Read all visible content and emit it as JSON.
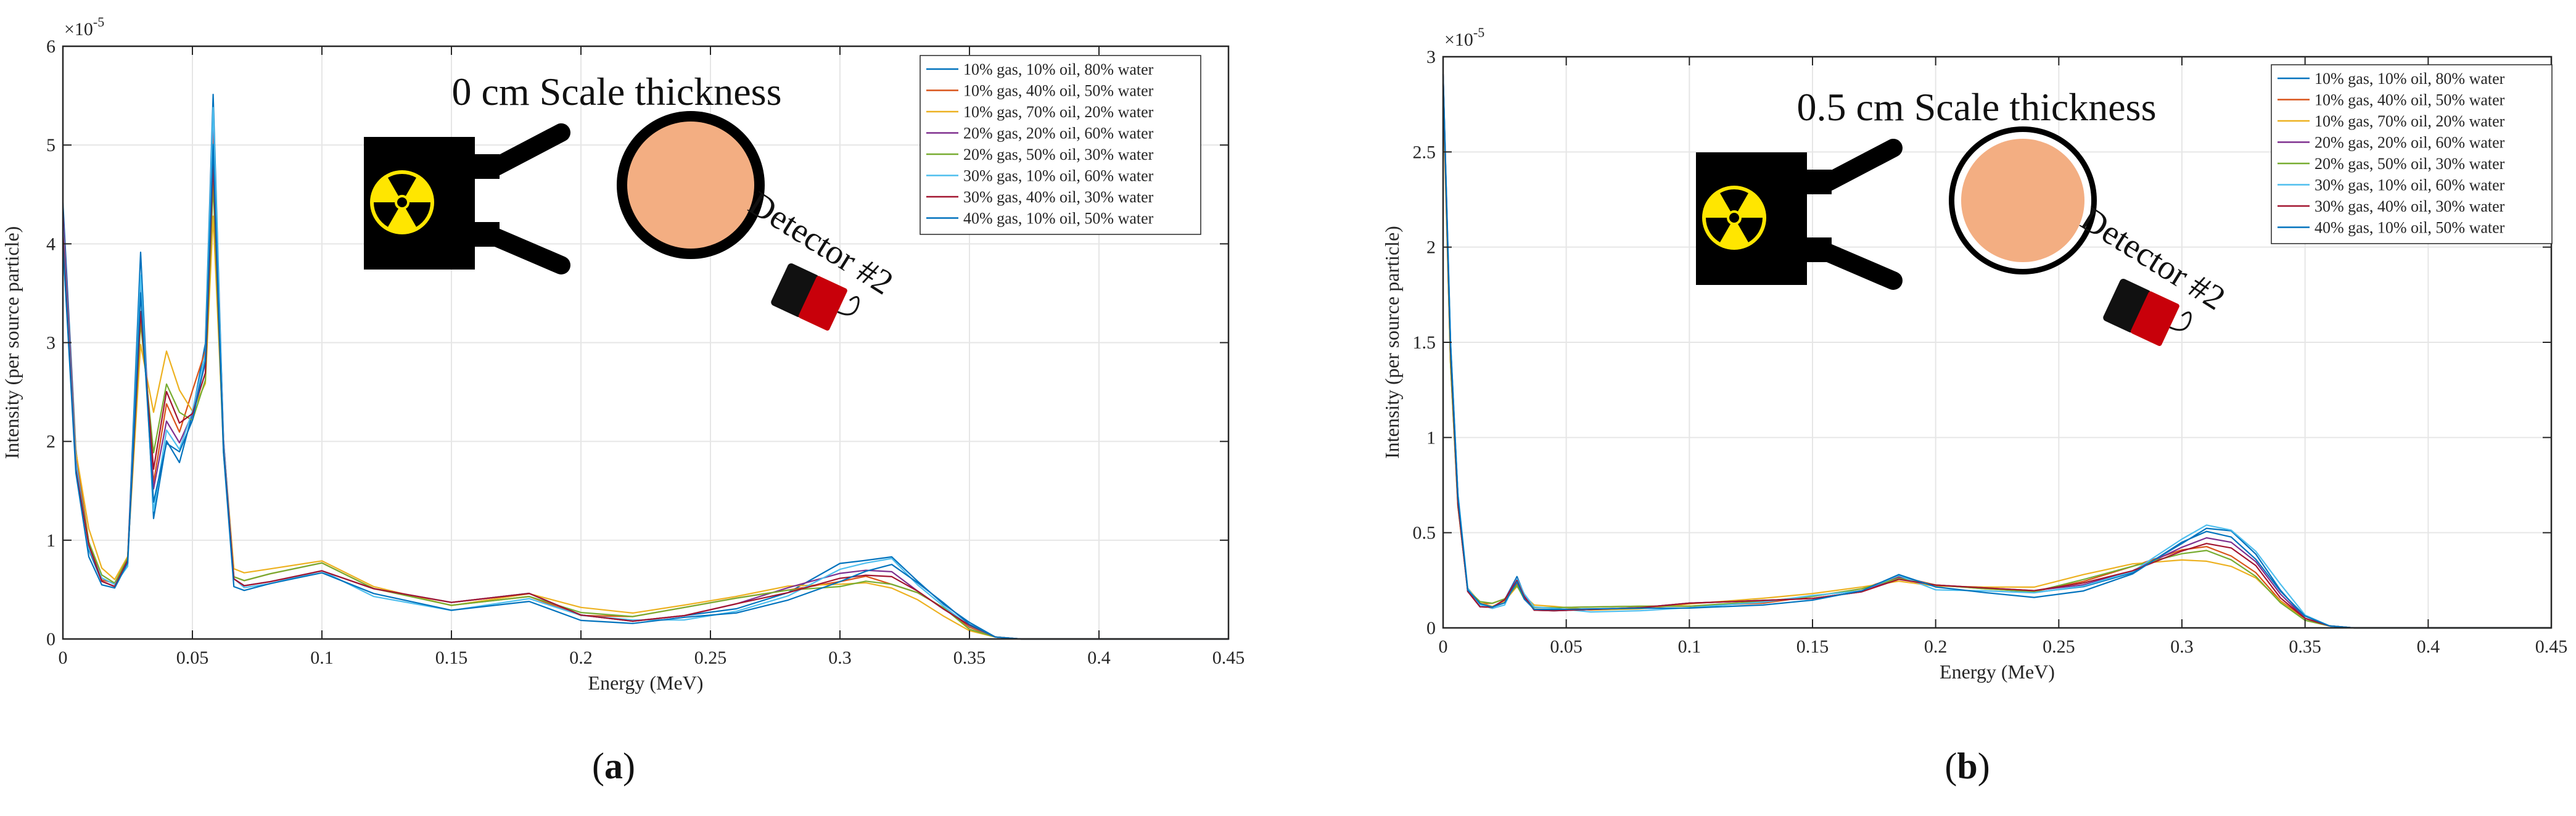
{
  "series_names": [
    "10% gas, 10% oil, 80% water",
    "10% gas, 40% oil, 50% water",
    "10% gas, 70% oil, 20% water",
    "20% gas, 20% oil, 60% water",
    "20% gas, 50% oil, 30% water",
    "30% gas, 10% oil, 60% water",
    "30% gas, 40% oil, 30% water",
    "40% gas, 10% oil, 50% water"
  ],
  "series_colors": [
    "#0072BD",
    "#D95319",
    "#EDB120",
    "#7E2F8E",
    "#77AC30",
    "#4DBEEE",
    "#A2142F",
    "#0072BD"
  ],
  "chart_data": [
    {
      "type": "line",
      "panel_label": "a",
      "title": "0 cm Scale thickness",
      "detector_label": "Detector #2",
      "xlabel": "Energy (MeV)",
      "ylabel": "Intensity (per source particle)",
      "y_exponent_label": "×10",
      "y_exponent": "-5",
      "xlim": [
        0,
        0.45
      ],
      "ylim": [
        0,
        6
      ],
      "xticks": [
        "0",
        "0.05",
        "0.1",
        "0.15",
        "0.2",
        "0.25",
        "0.3",
        "0.35",
        "0.4",
        "0.45"
      ],
      "yticks": [
        "0",
        "1",
        "2",
        "3",
        "4",
        "5",
        "6"
      ],
      "grid": true,
      "legend_position": "top-right",
      "x": [
        0,
        0.005,
        0.01,
        0.015,
        0.02,
        0.025,
        0.03,
        0.035,
        0.04,
        0.045,
        0.05,
        0.055,
        0.058,
        0.062,
        0.066,
        0.07,
        0.08,
        0.1,
        0.12,
        0.15,
        0.18,
        0.2,
        0.22,
        0.24,
        0.26,
        0.28,
        0.3,
        0.31,
        0.32,
        0.33,
        0.34,
        0.35,
        0.36,
        0.37,
        0.45
      ],
      "series": [
        {
          "name": "10% gas, 10% oil, 80% water",
          "values": [
            4.4,
            1.9,
            0.9,
            0.6,
            0.55,
            0.8,
            3.9,
            1.2,
            2.0,
            1.8,
            2.3,
            3.0,
            5.5,
            2.0,
            0.6,
            0.55,
            0.6,
            0.7,
            0.5,
            0.35,
            0.45,
            0.25,
            0.2,
            0.25,
            0.3,
            0.45,
            0.75,
            0.8,
            0.85,
            0.6,
            0.35,
            0.15,
            0.02,
            0,
            0
          ]
        },
        {
          "name": "10% gas, 40% oil, 50% water",
          "values": [
            4.3,
            1.9,
            1.0,
            0.6,
            0.55,
            0.8,
            3.5,
            1.6,
            2.4,
            2.1,
            2.5,
            2.9,
            5.1,
            2.0,
            0.65,
            0.6,
            0.65,
            0.75,
            0.5,
            0.35,
            0.45,
            0.25,
            0.22,
            0.3,
            0.4,
            0.5,
            0.6,
            0.65,
            0.55,
            0.45,
            0.3,
            0.12,
            0.02,
            0,
            0
          ]
        },
        {
          "name": "10% gas, 70% oil, 20% water",
          "values": [
            4.1,
            1.9,
            1.1,
            0.7,
            0.6,
            0.85,
            3.0,
            2.3,
            2.9,
            2.5,
            2.3,
            2.6,
            4.3,
            2.0,
            0.7,
            0.65,
            0.7,
            0.8,
            0.55,
            0.35,
            0.45,
            0.3,
            0.25,
            0.35,
            0.45,
            0.55,
            0.55,
            0.55,
            0.5,
            0.4,
            0.25,
            0.1,
            0.02,
            0,
            0
          ]
        },
        {
          "name": "20% gas, 20% oil, 60% water",
          "values": [
            4.3,
            1.8,
            0.95,
            0.6,
            0.55,
            0.8,
            3.6,
            1.5,
            2.2,
            2.0,
            2.3,
            2.8,
            5.3,
            2.0,
            0.6,
            0.55,
            0.6,
            0.7,
            0.5,
            0.35,
            0.45,
            0.25,
            0.2,
            0.25,
            0.35,
            0.5,
            0.65,
            0.7,
            0.7,
            0.5,
            0.3,
            0.12,
            0.02,
            0,
            0
          ]
        },
        {
          "name": "20% gas, 50% oil, 30% water",
          "values": [
            4.0,
            1.8,
            1.0,
            0.65,
            0.55,
            0.8,
            3.2,
            1.9,
            2.6,
            2.3,
            2.2,
            2.6,
            4.6,
            1.9,
            0.65,
            0.6,
            0.65,
            0.75,
            0.5,
            0.35,
            0.45,
            0.28,
            0.22,
            0.3,
            0.4,
            0.5,
            0.55,
            0.6,
            0.55,
            0.45,
            0.3,
            0.1,
            0.02,
            0,
            0
          ]
        },
        {
          "name": "30% gas, 10% oil, 60% water",
          "values": [
            4.2,
            1.8,
            0.9,
            0.6,
            0.55,
            0.75,
            3.7,
            1.3,
            2.1,
            1.9,
            2.3,
            2.9,
            5.4,
            2.0,
            0.6,
            0.5,
            0.55,
            0.7,
            0.45,
            0.3,
            0.4,
            0.22,
            0.18,
            0.2,
            0.3,
            0.45,
            0.7,
            0.75,
            0.8,
            0.55,
            0.35,
            0.15,
            0.02,
            0,
            0
          ]
        },
        {
          "name": "30% gas, 40% oil, 30% water",
          "values": [
            4.1,
            1.7,
            0.95,
            0.6,
            0.55,
            0.8,
            3.3,
            1.7,
            2.5,
            2.2,
            2.3,
            2.7,
            4.8,
            1.9,
            0.6,
            0.55,
            0.6,
            0.7,
            0.5,
            0.35,
            0.45,
            0.25,
            0.2,
            0.25,
            0.35,
            0.45,
            0.6,
            0.65,
            0.65,
            0.5,
            0.3,
            0.12,
            0.02,
            0,
            0
          ]
        },
        {
          "name": "40% gas, 10% oil, 50% water",
          "values": [
            4.0,
            1.7,
            0.85,
            0.55,
            0.5,
            0.75,
            3.5,
            1.4,
            2.0,
            1.9,
            2.2,
            2.8,
            5.0,
            1.9,
            0.55,
            0.5,
            0.55,
            0.65,
            0.45,
            0.3,
            0.4,
            0.2,
            0.15,
            0.2,
            0.25,
            0.4,
            0.6,
            0.7,
            0.75,
            0.55,
            0.35,
            0.15,
            0.02,
            0,
            0
          ]
        }
      ]
    },
    {
      "type": "line",
      "panel_label": "b",
      "title": "0.5 cm Scale thickness",
      "detector_label": "Detector #2",
      "xlabel": "Energy (MeV)",
      "ylabel": "Intensity (per source particle)",
      "y_exponent_label": "×10",
      "y_exponent": "-5",
      "xlim": [
        0,
        0.45
      ],
      "ylim": [
        0,
        3
      ],
      "xticks": [
        "0",
        "0.05",
        "0.1",
        "0.15",
        "0.2",
        "0.25",
        "0.3",
        "0.35",
        "0.4",
        "0.45"
      ],
      "yticks": [
        "0",
        "0.5",
        "1",
        "1.5",
        "2",
        "2.5",
        "3"
      ],
      "grid": true,
      "legend_position": "top-right",
      "x": [
        0,
        0.003,
        0.006,
        0.01,
        0.015,
        0.02,
        0.025,
        0.03,
        0.033,
        0.037,
        0.045,
        0.06,
        0.08,
        0.1,
        0.13,
        0.15,
        0.17,
        0.185,
        0.2,
        0.22,
        0.24,
        0.26,
        0.28,
        0.3,
        0.31,
        0.32,
        0.33,
        0.34,
        0.35,
        0.36,
        0.37,
        0.45
      ],
      "series": [
        {
          "name": "10% gas, 10% oil, 80% water",
          "values": [
            2.9,
            1.5,
            0.7,
            0.2,
            0.12,
            0.11,
            0.14,
            0.26,
            0.17,
            0.1,
            0.1,
            0.1,
            0.1,
            0.12,
            0.14,
            0.16,
            0.2,
            0.27,
            0.22,
            0.2,
            0.18,
            0.22,
            0.3,
            0.45,
            0.52,
            0.5,
            0.38,
            0.2,
            0.06,
            0.01,
            0,
            0
          ]
        },
        {
          "name": "10% gas, 40% oil, 50% water",
          "values": [
            2.85,
            1.4,
            0.65,
            0.2,
            0.12,
            0.12,
            0.15,
            0.24,
            0.17,
            0.11,
            0.1,
            0.1,
            0.11,
            0.12,
            0.14,
            0.17,
            0.2,
            0.26,
            0.22,
            0.21,
            0.2,
            0.25,
            0.32,
            0.4,
            0.42,
            0.38,
            0.3,
            0.15,
            0.05,
            0.01,
            0,
            0
          ]
        },
        {
          "name": "10% gas, 70% oil, 20% water",
          "values": [
            2.8,
            1.4,
            0.65,
            0.2,
            0.13,
            0.12,
            0.15,
            0.22,
            0.16,
            0.11,
            0.11,
            0.1,
            0.11,
            0.13,
            0.15,
            0.17,
            0.21,
            0.25,
            0.23,
            0.22,
            0.21,
            0.27,
            0.33,
            0.36,
            0.36,
            0.33,
            0.26,
            0.13,
            0.04,
            0.01,
            0,
            0
          ]
        },
        {
          "name": "20% gas, 20% oil, 60% water",
          "values": [
            2.9,
            1.45,
            0.7,
            0.2,
            0.12,
            0.11,
            0.14,
            0.25,
            0.17,
            0.1,
            0.1,
            0.1,
            0.1,
            0.12,
            0.14,
            0.16,
            0.2,
            0.27,
            0.22,
            0.2,
            0.19,
            0.23,
            0.31,
            0.43,
            0.47,
            0.44,
            0.34,
            0.18,
            0.05,
            0.01,
            0,
            0
          ]
        },
        {
          "name": "20% gas, 50% oil, 30% water",
          "values": [
            2.85,
            1.4,
            0.65,
            0.2,
            0.13,
            0.12,
            0.15,
            0.23,
            0.16,
            0.11,
            0.1,
            0.1,
            0.11,
            0.12,
            0.15,
            0.17,
            0.2,
            0.25,
            0.22,
            0.21,
            0.2,
            0.26,
            0.32,
            0.38,
            0.4,
            0.36,
            0.28,
            0.14,
            0.04,
            0.01,
            0,
            0
          ]
        },
        {
          "name": "30% gas, 10% oil, 60% water",
          "values": [
            2.9,
            1.5,
            0.7,
            0.2,
            0.12,
            0.11,
            0.13,
            0.26,
            0.17,
            0.1,
            0.1,
            0.09,
            0.1,
            0.11,
            0.13,
            0.16,
            0.19,
            0.28,
            0.21,
            0.2,
            0.18,
            0.21,
            0.29,
            0.47,
            0.55,
            0.52,
            0.4,
            0.22,
            0.06,
            0.01,
            0,
            0
          ]
        },
        {
          "name": "30% gas, 40% oil, 30% water",
          "values": [
            2.85,
            1.45,
            0.65,
            0.2,
            0.12,
            0.11,
            0.14,
            0.24,
            0.16,
            0.1,
            0.1,
            0.1,
            0.1,
            0.12,
            0.14,
            0.16,
            0.2,
            0.26,
            0.22,
            0.2,
            0.19,
            0.24,
            0.31,
            0.41,
            0.44,
            0.41,
            0.32,
            0.16,
            0.05,
            0.01,
            0,
            0
          ]
        },
        {
          "name": "40% gas, 10% oil, 50% water",
          "values": [
            2.9,
            1.5,
            0.7,
            0.2,
            0.12,
            0.1,
            0.13,
            0.25,
            0.16,
            0.1,
            0.09,
            0.09,
            0.1,
            0.11,
            0.13,
            0.15,
            0.19,
            0.27,
            0.21,
            0.19,
            0.17,
            0.2,
            0.28,
            0.44,
            0.5,
            0.48,
            0.37,
            0.2,
            0.06,
            0.01,
            0,
            0
          ]
        }
      ]
    }
  ]
}
